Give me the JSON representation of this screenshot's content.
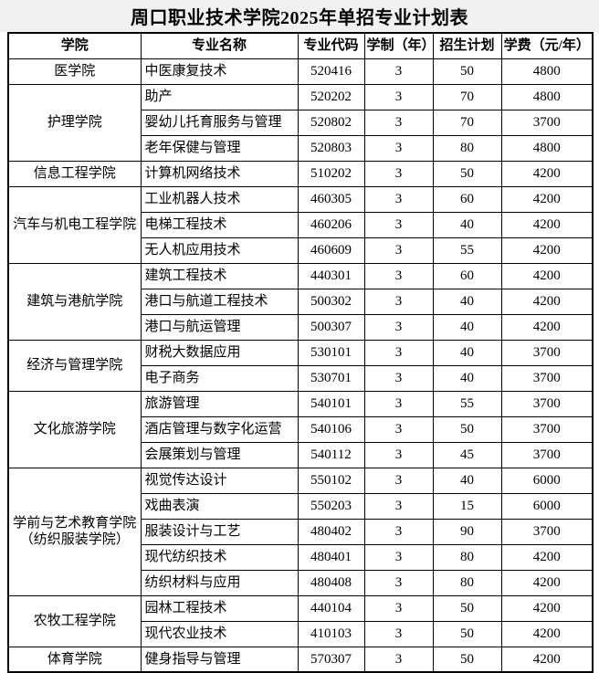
{
  "title": "周口职业技术学院2025年单招专业计划表",
  "colors": {
    "title_band_bg": "#f1f1f1",
    "border": "#000000",
    "text": "#000000",
    "page_bg": "#ffffff"
  },
  "table": {
    "headers": [
      "学院",
      "专业名称",
      "专业代码",
      "学制（年）",
      "招生计划",
      "学费（元/年）"
    ],
    "groups": [
      {
        "college": "医学院",
        "majors": [
          {
            "name": "中医康复技术",
            "code": "520416",
            "years": "3",
            "plan": "50",
            "fee": "4800"
          }
        ]
      },
      {
        "college": "护理学院",
        "majors": [
          {
            "name": "助产",
            "code": "520202",
            "years": "3",
            "plan": "70",
            "fee": "4800"
          },
          {
            "name": "婴幼儿托育服务与管理",
            "code": "520802",
            "years": "3",
            "plan": "70",
            "fee": "3700"
          },
          {
            "name": "老年保健与管理",
            "code": "520803",
            "years": "3",
            "plan": "80",
            "fee": "4800"
          }
        ]
      },
      {
        "college": "信息工程学院",
        "majors": [
          {
            "name": "计算机网络技术",
            "code": "510202",
            "years": "3",
            "plan": "50",
            "fee": "4200"
          }
        ]
      },
      {
        "college": "汽车与机电工程学院",
        "majors": [
          {
            "name": "工业机器人技术",
            "code": "460305",
            "years": "3",
            "plan": "60",
            "fee": "4200"
          },
          {
            "name": "电梯工程技术",
            "code": "460206",
            "years": "3",
            "plan": "40",
            "fee": "4200"
          },
          {
            "name": "无人机应用技术",
            "code": "460609",
            "years": "3",
            "plan": "55",
            "fee": "4200"
          }
        ]
      },
      {
        "college": "建筑与港航学院",
        "majors": [
          {
            "name": "建筑工程技术",
            "code": "440301",
            "years": "3",
            "plan": "60",
            "fee": "4200"
          },
          {
            "name": "港口与航道工程技术",
            "code": "500302",
            "years": "3",
            "plan": "40",
            "fee": "4200"
          },
          {
            "name": "港口与航运管理",
            "code": "500307",
            "years": "3",
            "plan": "40",
            "fee": "4200"
          }
        ]
      },
      {
        "college": "经济与管理学院",
        "majors": [
          {
            "name": "财税大数据应用",
            "code": "530101",
            "years": "3",
            "plan": "40",
            "fee": "3700"
          },
          {
            "name": "电子商务",
            "code": "530701",
            "years": "3",
            "plan": "40",
            "fee": "3700"
          }
        ]
      },
      {
        "college": "文化旅游学院",
        "majors": [
          {
            "name": "旅游管理",
            "code": "540101",
            "years": "3",
            "plan": "55",
            "fee": "3700"
          },
          {
            "name": "酒店管理与数字化运营",
            "code": "540106",
            "years": "3",
            "plan": "50",
            "fee": "3700"
          },
          {
            "name": "会展策划与管理",
            "code": "540112",
            "years": "3",
            "plan": "45",
            "fee": "3700"
          }
        ]
      },
      {
        "college": "学前与艺术教育学院（纺织服装学院）",
        "majors": [
          {
            "name": "视觉传达设计",
            "code": "550102",
            "years": "3",
            "plan": "40",
            "fee": "6000"
          },
          {
            "name": "戏曲表演",
            "code": "550203",
            "years": "3",
            "plan": "15",
            "fee": "6000"
          },
          {
            "name": "服装设计与工艺",
            "code": "480402",
            "years": "3",
            "plan": "90",
            "fee": "3700"
          },
          {
            "name": "现代纺织技术",
            "code": "480401",
            "years": "3",
            "plan": "80",
            "fee": "4200"
          },
          {
            "name": "纺织材料与应用",
            "code": "480408",
            "years": "3",
            "plan": "80",
            "fee": "4200"
          }
        ]
      },
      {
        "college": "农牧工程学院",
        "majors": [
          {
            "name": "园林工程技术",
            "code": "440104",
            "years": "3",
            "plan": "50",
            "fee": "4200"
          },
          {
            "name": "现代农业技术",
            "code": "410103",
            "years": "3",
            "plan": "50",
            "fee": "4200"
          }
        ]
      },
      {
        "college": "体育学院",
        "majors": [
          {
            "name": "健身指导与管理",
            "code": "570307",
            "years": "3",
            "plan": "50",
            "fee": "4200"
          }
        ]
      }
    ]
  }
}
